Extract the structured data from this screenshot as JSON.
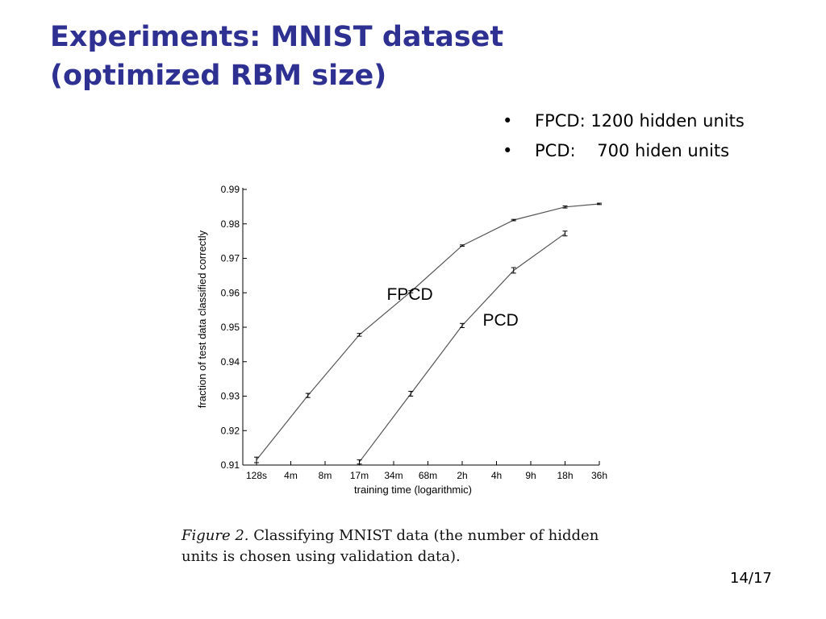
{
  "slide": {
    "title_line1": "Experiments: MNIST dataset",
    "title_line2": "(optimized RBM size)",
    "page_number": "14/17",
    "title_color": "#2e3192"
  },
  "bullets": [
    {
      "marker": "•",
      "text": "FPCD: 1200 hidden units"
    },
    {
      "marker": "•",
      "text": "PCD:    700 hiden units"
    }
  ],
  "caption": {
    "figure_label": "Figure 2.",
    "text": " Classifying MNIST data (the number of hidden units is chosen using validation data)."
  },
  "chart_data": {
    "type": "line",
    "xlabel": "training time (logarithmic)",
    "ylabel": "fraction of test data classified correctly",
    "categories": [
      "128s",
      "4m",
      "8m",
      "17m",
      "34m",
      "68m",
      "2h",
      "4h",
      "9h",
      "18h",
      "36h"
    ],
    "ylim": [
      0.91,
      0.99
    ],
    "yticks": [
      "0.91",
      "0.92",
      "0.93",
      "0.94",
      "0.95",
      "0.96",
      "0.97",
      "0.98",
      "0.99"
    ],
    "grid": false,
    "series": [
      {
        "name": "FPCD",
        "x": [
          0,
          1.5,
          3,
          4.5,
          6,
          7.5,
          9,
          10
        ],
        "values": [
          0.9115,
          0.9302,
          0.9478,
          0.9603,
          0.9737,
          0.9811,
          0.9849,
          0.9858
        ],
        "errors": [
          0.0008,
          0.0006,
          0.0004,
          0.0003,
          0.0002,
          0.0002,
          0.0003,
          0.0002
        ]
      },
      {
        "name": "PCD",
        "x": [
          3,
          4.5,
          6,
          7.5,
          9
        ],
        "values": [
          0.9109,
          0.9307,
          0.9505,
          0.9665,
          0.9772
        ],
        "errors": [
          0.0006,
          0.0007,
          0.0006,
          0.0008,
          0.0007
        ]
      }
    ]
  }
}
